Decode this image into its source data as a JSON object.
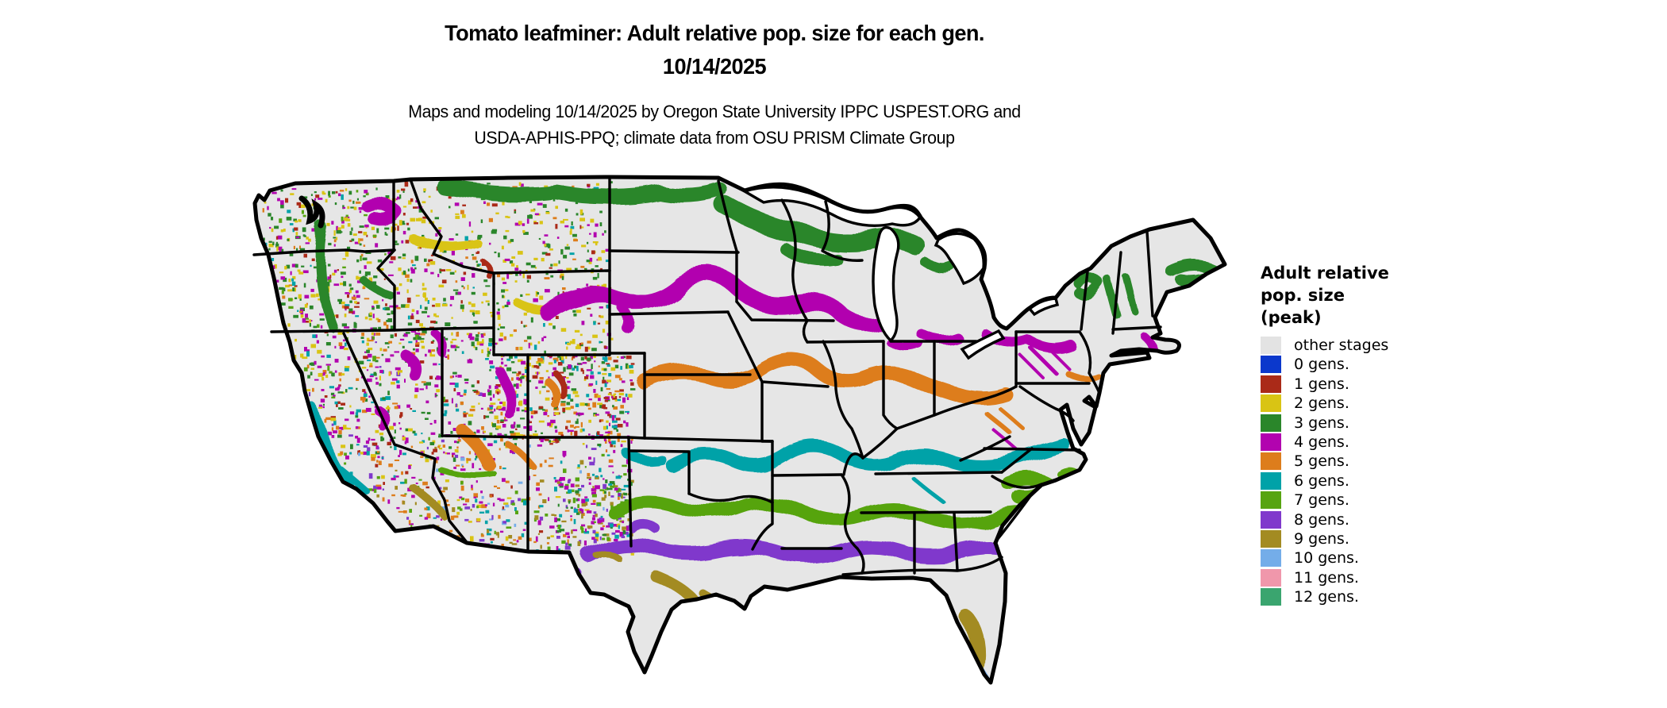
{
  "title": {
    "line1": "Tomato leafminer: Adult relative pop. size for each gen.",
    "line2": "10/14/2025"
  },
  "subtitle": {
    "line1": "Maps and modeling 10/14/2025 by Oregon State University IPPC USPEST.ORG and",
    "line2": "USDA-APHIS-PPQ; climate data from OSU PRISM Climate Group"
  },
  "legend": {
    "title_lines": [
      "Adult relative",
      "pop. size",
      "(peak)"
    ],
    "items": [
      {
        "gen": "other",
        "label": "other stages",
        "color": "#e3e3e3"
      },
      {
        "gen": "0",
        "label": "0 gens.",
        "color": "#0b38cc"
      },
      {
        "gen": "1",
        "label": "1 gens.",
        "color": "#aa2a18"
      },
      {
        "gen": "2",
        "label": "2 gens.",
        "color": "#d9c414"
      },
      {
        "gen": "3",
        "label": "3 gens.",
        "color": "#2a862a"
      },
      {
        "gen": "4",
        "label": "4 gens.",
        "color": "#b203af"
      },
      {
        "gen": "5",
        "label": "5 gens.",
        "color": "#dd7d1c"
      },
      {
        "gen": "6",
        "label": "6 gens.",
        "color": "#00a2a8"
      },
      {
        "gen": "7",
        "label": "7 gens.",
        "color": "#57a411"
      },
      {
        "gen": "8",
        "label": "8 gens.",
        "color": "#8039cc"
      },
      {
        "gen": "9",
        "label": "9 gens.",
        "color": "#a38b22"
      },
      {
        "gen": "10",
        "label": "10 gens.",
        "color": "#74ade9"
      },
      {
        "gen": "11",
        "label": "11 gens.",
        "color": "#f097ab"
      },
      {
        "gen": "12",
        "label": "12 gens.",
        "color": "#3aa56f"
      }
    ]
  },
  "map": {
    "region_label": "Continental United States",
    "land_color": "#e6e6e6",
    "border_color": "#000000",
    "water_color": "#ffffff"
  },
  "chart_data": {
    "type": "heatmap",
    "title": "Tomato leafminer: Adult relative pop. size for each gen. 10/14/2025",
    "legend_title": "Adult relative pop. size (peak)",
    "categories": [
      "other stages",
      "0 gens.",
      "1 gens.",
      "2 gens.",
      "3 gens.",
      "4 gens.",
      "5 gens.",
      "6 gens.",
      "7 gens.",
      "8 gens.",
      "9 gens.",
      "10 gens.",
      "11 gens.",
      "12 gens."
    ],
    "colors": [
      "#e3e3e3",
      "#0b38cc",
      "#aa2a18",
      "#d9c414",
      "#2a862a",
      "#b203af",
      "#dd7d1c",
      "#00a2a8",
      "#57a411",
      "#8039cc",
      "#a38b22",
      "#74ade9",
      "#f097ab",
      "#3aa56f"
    ],
    "legend_position": "right"
  }
}
